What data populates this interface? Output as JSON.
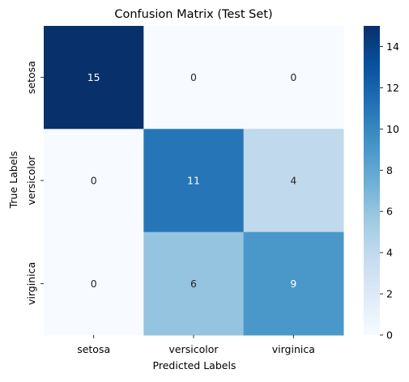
{
  "chart_data": {
    "type": "heatmap",
    "title": "Confusion Matrix (Test Set)",
    "xlabel": "Predicted Labels",
    "ylabel": "True Labels",
    "x_categories": [
      "setosa",
      "versicolor",
      "virginica"
    ],
    "y_categories": [
      "setosa",
      "versicolor",
      "virginica"
    ],
    "values": [
      [
        15,
        0,
        0
      ],
      [
        0,
        11,
        4
      ],
      [
        0,
        6,
        9
      ]
    ],
    "colorbar": {
      "vmin": 0,
      "vmax": 15,
      "ticks": [
        0,
        2,
        4,
        6,
        8,
        10,
        12,
        14
      ],
      "colormap": "Blues"
    },
    "annotate": true
  }
}
